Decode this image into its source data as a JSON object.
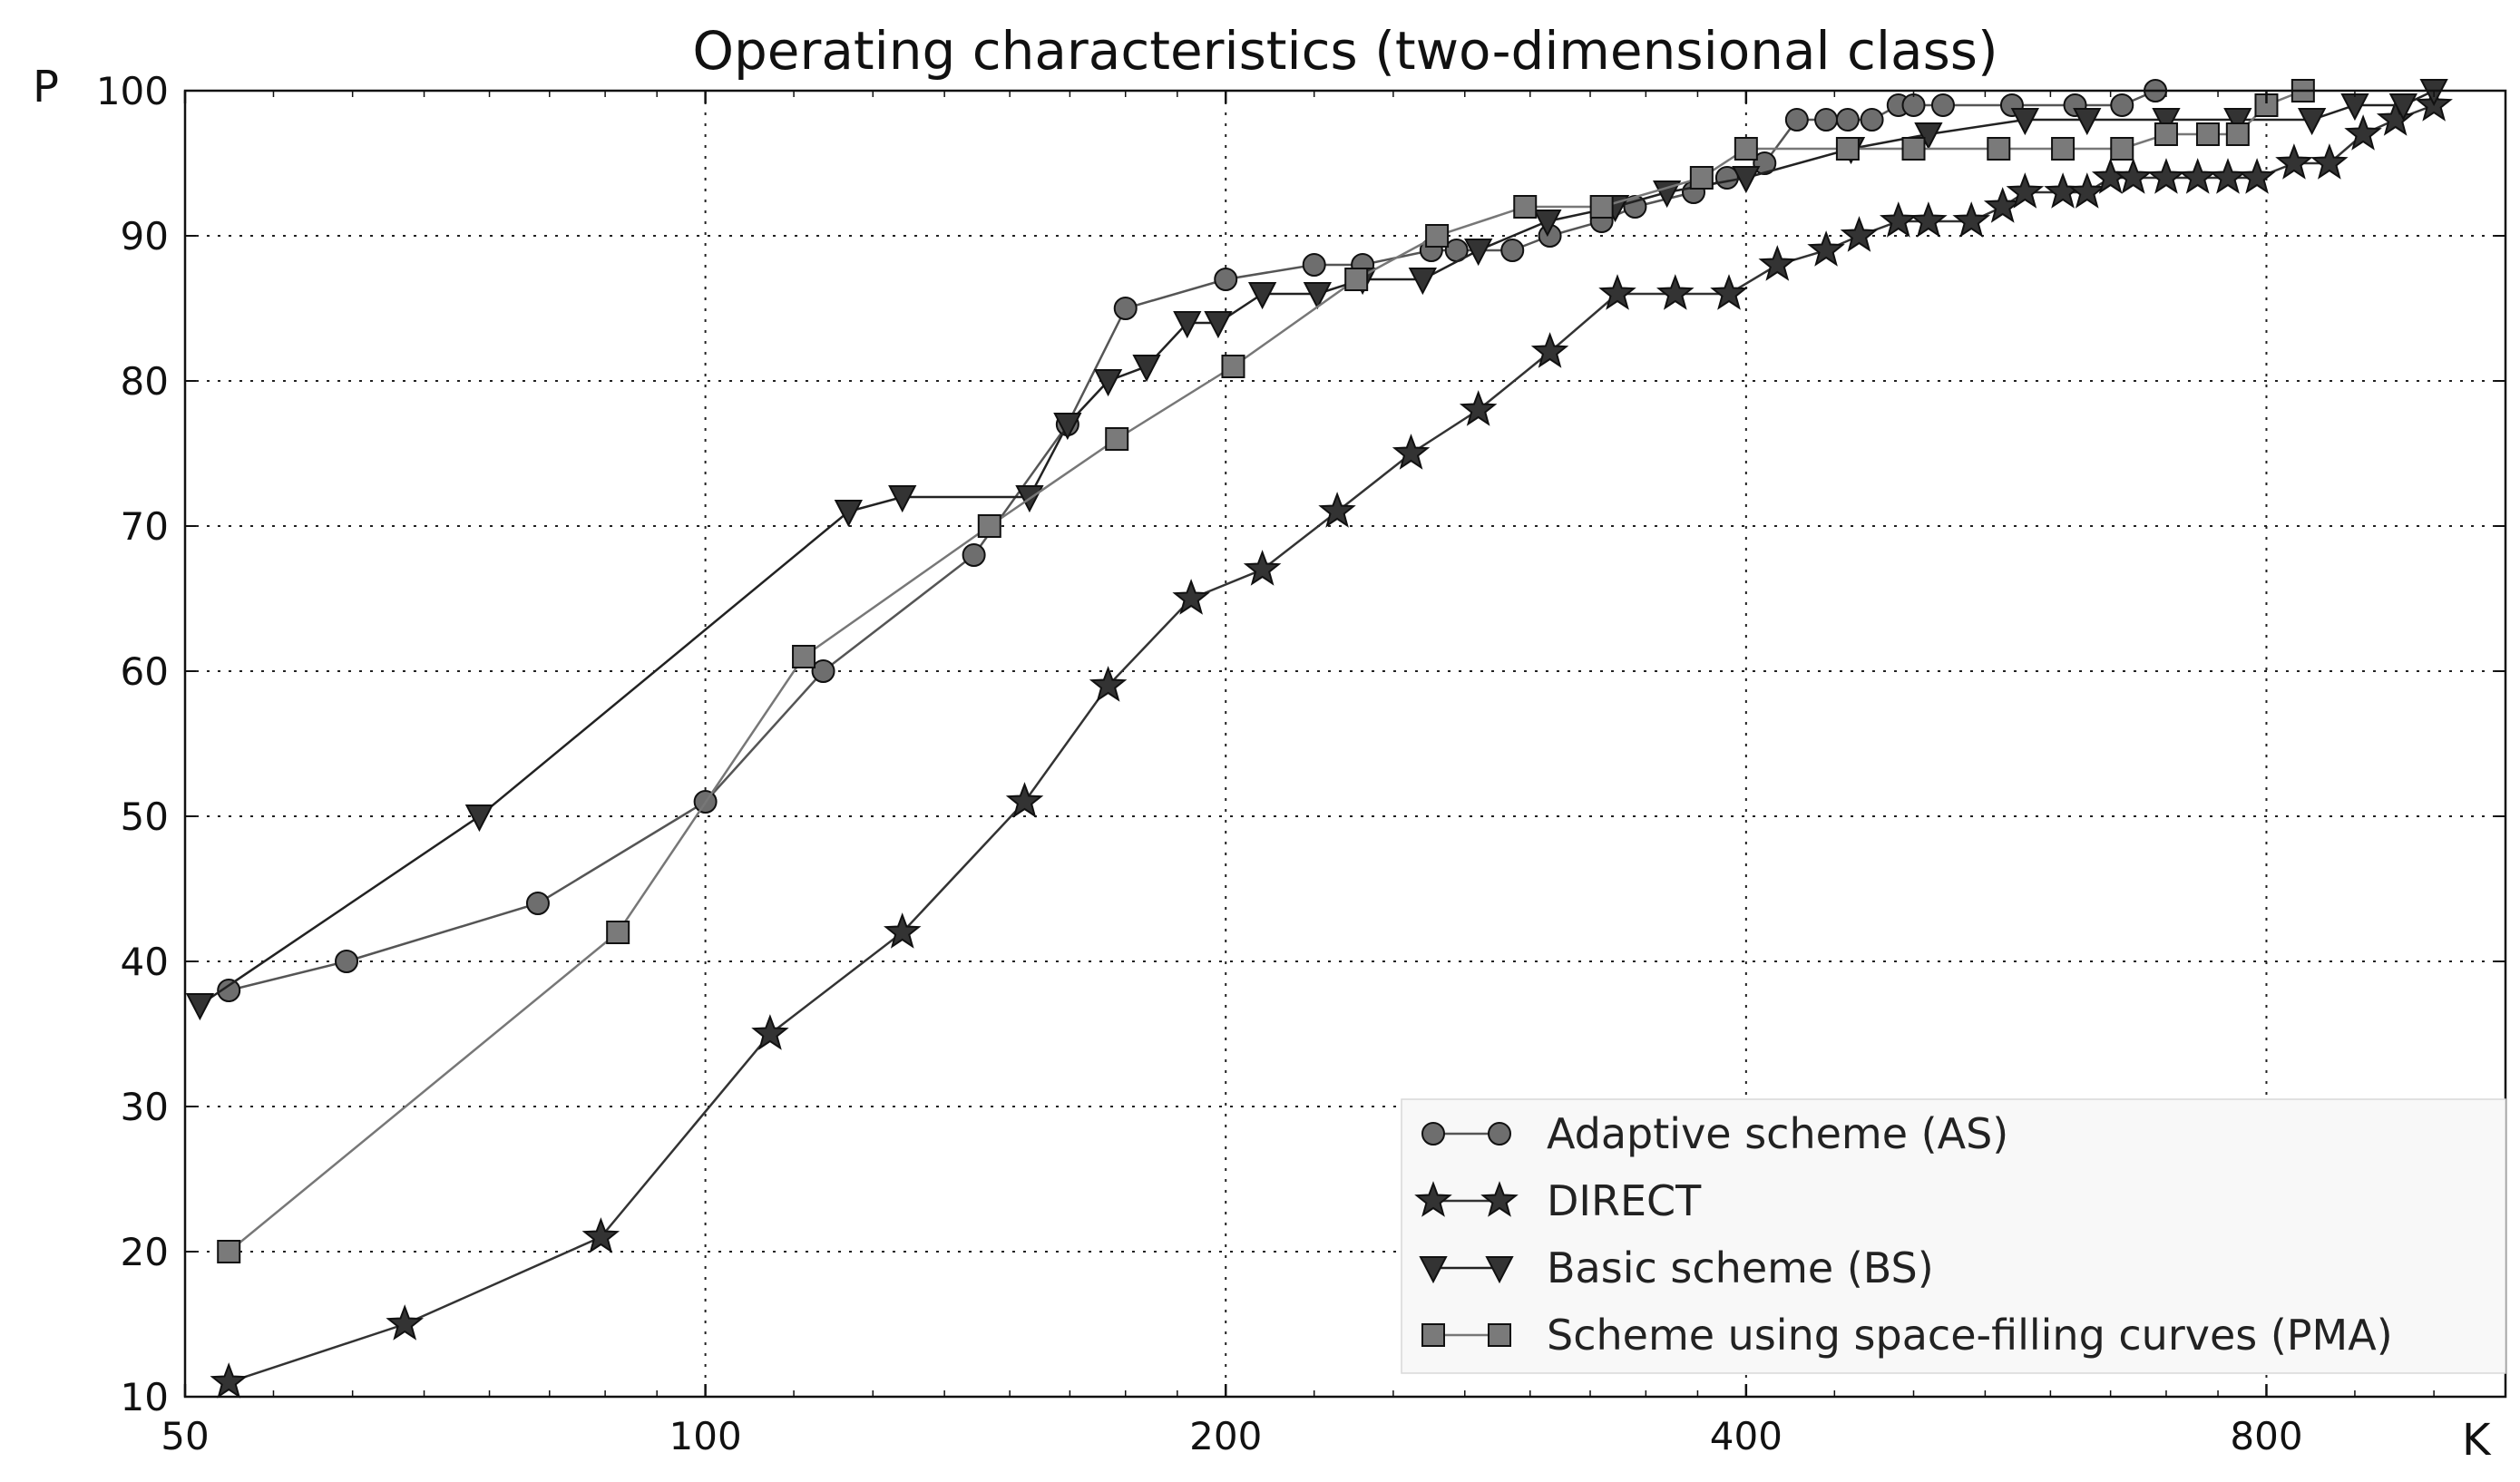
{
  "chart_data": {
    "type": "line",
    "title": "Operating characteristics (two-dimensional class)",
    "xlabel": "K",
    "ylabel": "P",
    "x_scale": "log2",
    "xlim": [
      50,
      1100
    ],
    "ylim": [
      10,
      100
    ],
    "x_ticks": [
      50,
      100,
      200,
      400,
      800
    ],
    "y_ticks": [
      10,
      20,
      30,
      40,
      50,
      60,
      70,
      80,
      90,
      100
    ],
    "grid": true,
    "legend_position": "bottom-right",
    "series": [
      {
        "name": "Adaptive scheme (AS)",
        "marker": "circle",
        "line_color": "#555555",
        "marker_color": "#6e6e6e",
        "x": [
          53,
          62,
          80,
          100,
          117,
          143,
          162,
          175,
          200,
          225,
          240,
          263,
          272,
          293,
          308,
          330,
          345,
          373,
          390,
          410,
          428,
          445,
          458,
          473,
          490,
          500,
          520,
          570,
          620,
          660,
          690
        ],
        "y": [
          38,
          40,
          44,
          51,
          60,
          68,
          77,
          85,
          87,
          88,
          88,
          89,
          89,
          89,
          90,
          91,
          92,
          93,
          94,
          95,
          98,
          98,
          98,
          98,
          99,
          99,
          99,
          99,
          99,
          99,
          100
        ]
      },
      {
        "name": "DIRECT",
        "marker": "star",
        "line_color": "#333333",
        "marker_color": "#333333",
        "x": [
          53,
          67,
          87,
          109,
          130,
          153,
          171,
          191,
          210,
          232,
          256,
          280,
          308,
          337,
          364,
          391,
          417,
          445,
          465,
          490,
          510,
          540,
          563,
          580,
          610,
          630,
          650,
          670,
          700,
          730,
          760,
          790,
          830,
          870,
          910,
          950,
          1000
        ],
        "y": [
          11,
          15,
          21,
          35,
          42,
          51,
          59,
          65,
          67,
          71,
          75,
          78,
          82,
          86,
          86,
          86,
          88,
          89,
          90,
          91,
          91,
          91,
          92,
          93,
          93,
          93,
          94,
          94,
          94,
          94,
          94,
          94,
          95,
          95,
          97,
          98,
          99
        ]
      },
      {
        "name": "Basic scheme (BS)",
        "marker": "triangle-down",
        "line_color": "#222222",
        "marker_color": "#333333",
        "x": [
          51,
          74,
          121,
          130,
          154,
          162,
          171,
          180,
          190,
          198,
          210,
          226,
          240,
          260,
          280,
          307,
          336,
          360,
          400,
          460,
          510,
          580,
          630,
          700,
          770,
          850,
          900,
          960,
          1000
        ],
        "y": [
          37,
          50,
          71,
          72,
          72,
          77,
          80,
          81,
          84,
          84,
          86,
          86,
          87,
          87,
          89,
          91,
          92,
          93,
          94,
          96,
          97,
          98,
          98,
          98,
          98,
          98,
          99,
          99,
          100
        ]
      },
      {
        "name": "Scheme using space-filling curves (PMA)",
        "marker": "square",
        "line_color": "#777777",
        "marker_color": "#7a7a7a",
        "x": [
          53,
          89,
          114,
          146,
          173,
          202,
          238,
          265,
          298,
          330,
          377,
          400,
          458,
          500,
          560,
          610,
          660,
          700,
          740,
          770,
          800,
          840
        ],
        "y": [
          20,
          42,
          61,
          70,
          76,
          81,
          87,
          90,
          92,
          92,
          94,
          96,
          96,
          96,
          96,
          96,
          96,
          97,
          97,
          97,
          99,
          100
        ]
      }
    ]
  }
}
